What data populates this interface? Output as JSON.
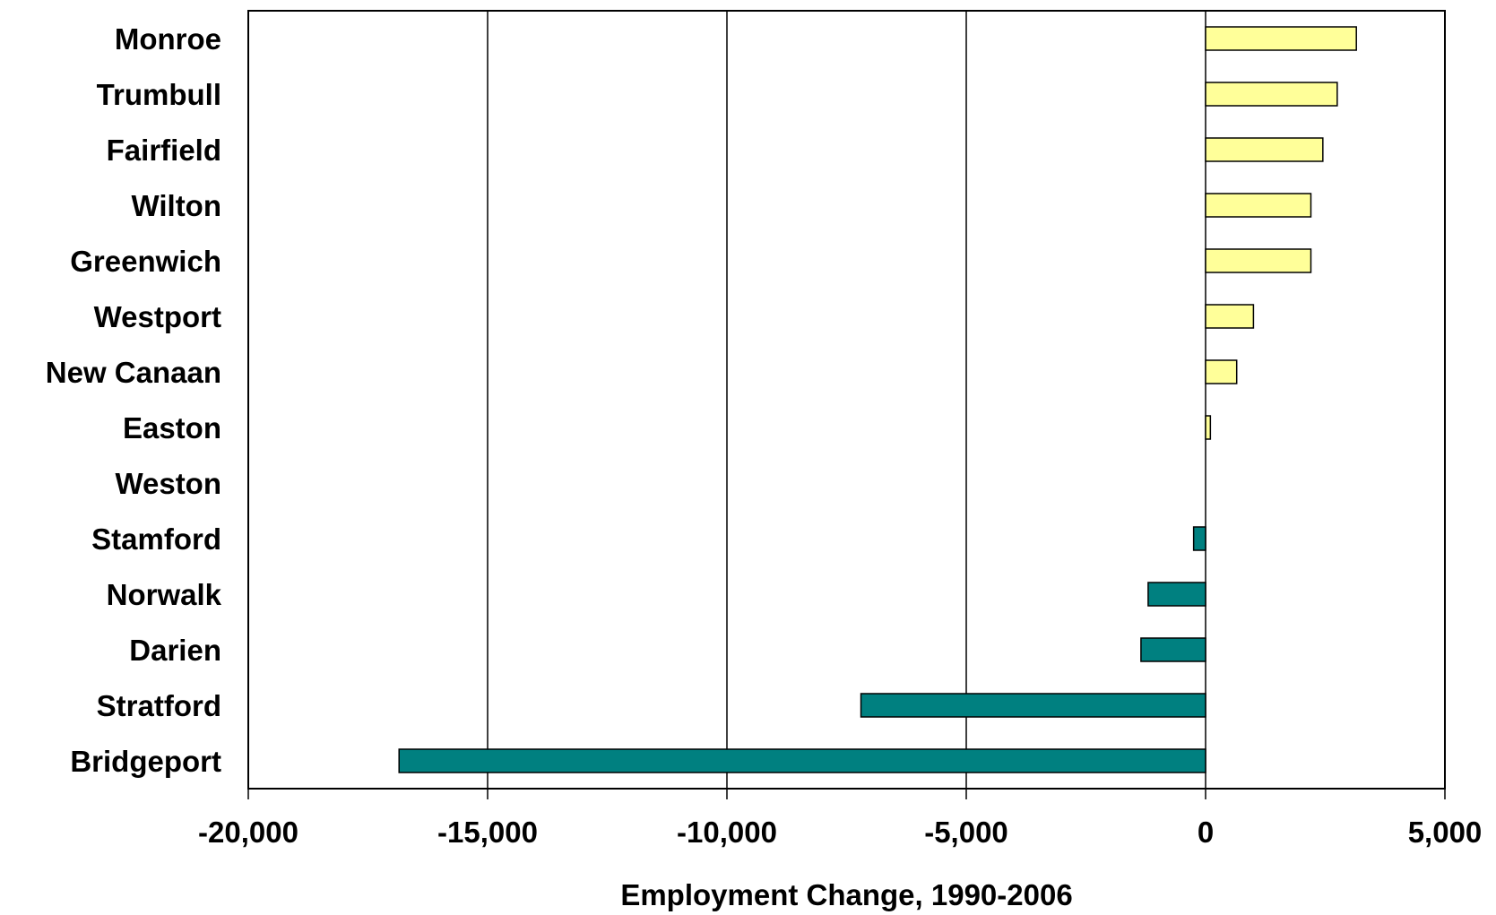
{
  "chart_data": {
    "type": "bar",
    "orientation": "horizontal",
    "categories": [
      "Monroe",
      "Trumbull",
      "Fairfield",
      "Wilton",
      "Greenwich",
      "Westport",
      "New Canaan",
      "Easton",
      "Weston",
      "Stamford",
      "Norwalk",
      "Darien",
      "Stratford",
      "Bridgeport"
    ],
    "values": [
      3150,
      2750,
      2450,
      2200,
      2200,
      1000,
      650,
      100,
      0,
      -250,
      -1200,
      -1350,
      -7200,
      -16850
    ],
    "xlabel": "Employment Change, 1990-2006",
    "ylabel": "",
    "xlim": [
      -20000,
      5000
    ],
    "xticks": [
      -20000,
      -15000,
      -10000,
      -5000,
      0,
      5000
    ],
    "xtick_labels": [
      "-20,000",
      "-15,000",
      "-10,000",
      "-5,000",
      "0",
      "5,000"
    ],
    "grid": "vertical",
    "legend": "none",
    "colors": {
      "positive": "#FFFF99",
      "negative": "#008080"
    }
  }
}
